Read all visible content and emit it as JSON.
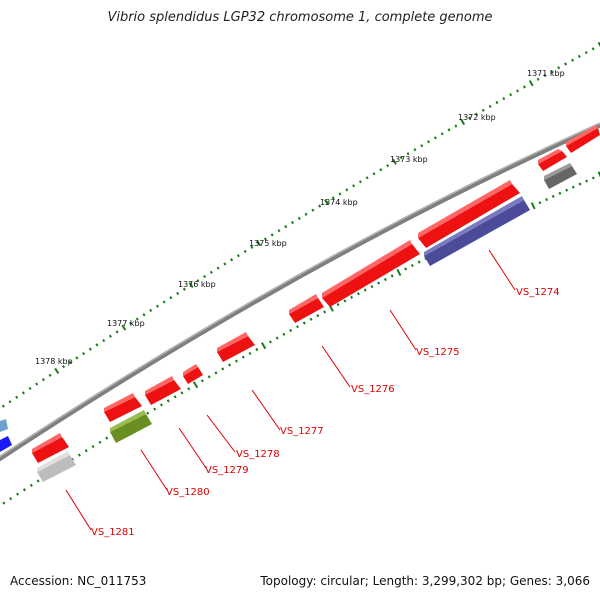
{
  "title": "Vibrio splendidus LGP32 chromosome 1, complete genome",
  "footer": {
    "accession": "Accession: NC_011753",
    "summary": "Topology: circular; Length: 3,299,302 bp; Genes: 3,066"
  },
  "kbp_ticks": [
    "1371 kbp",
    "1372 kbp",
    "1373 kbp",
    "1374 kbp",
    "1375 kbp",
    "1376 kbp",
    "1377 kbp",
    "1378 kbp"
  ],
  "gene_labels": [
    "VS_1274",
    "VS_1275",
    "VS_1276",
    "VS_1277",
    "VS_1278",
    "VS_1279",
    "VS_1280",
    "VS_1281"
  ],
  "colors": {
    "backbone": "#8a8a8a",
    "gene_red": "#ee1111",
    "rna_green": "#6b8e23",
    "cds_blue": "#4b4b9a",
    "pseudo_gray": "#bdbdbd",
    "dark_gray": "#666666",
    "bright_blue": "#1a1aff",
    "light_blue": "#6fa0d0",
    "tick_green": "#1a7a1a",
    "label_red": "#dd0000"
  }
}
